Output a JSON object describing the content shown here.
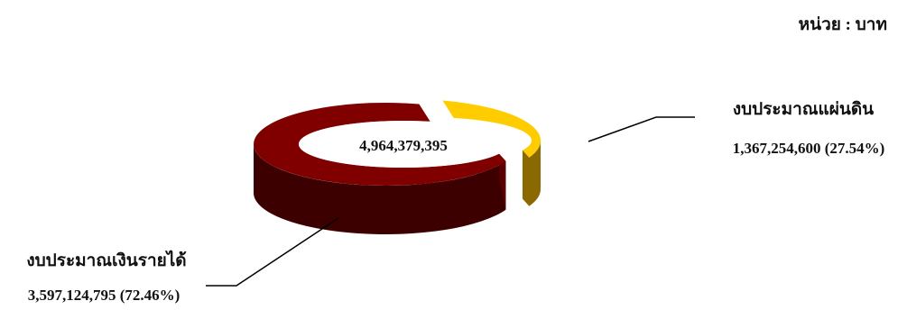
{
  "unit_label": "หน่วย : บาท",
  "chart_data": {
    "type": "pie",
    "variant": "3d-doughnut",
    "total_label": "4,964,379,395",
    "total": 4964379395,
    "slices": [
      {
        "name": "งบประมาณแผ่นดิน",
        "value": 1367254600,
        "value_label": "1,367,254,600 (27.54%)",
        "percent": 27.54,
        "color": "#ffcc00",
        "side_color": "#8a6a00",
        "exploded": true
      },
      {
        "name": "งบประมาณเงินรายได้",
        "value": 3597124795,
        "value_label": "3,597,124,795 (72.46%)",
        "percent": 72.46,
        "color": "#800000",
        "side_color": "#3d0000",
        "exploded": false
      }
    ]
  }
}
